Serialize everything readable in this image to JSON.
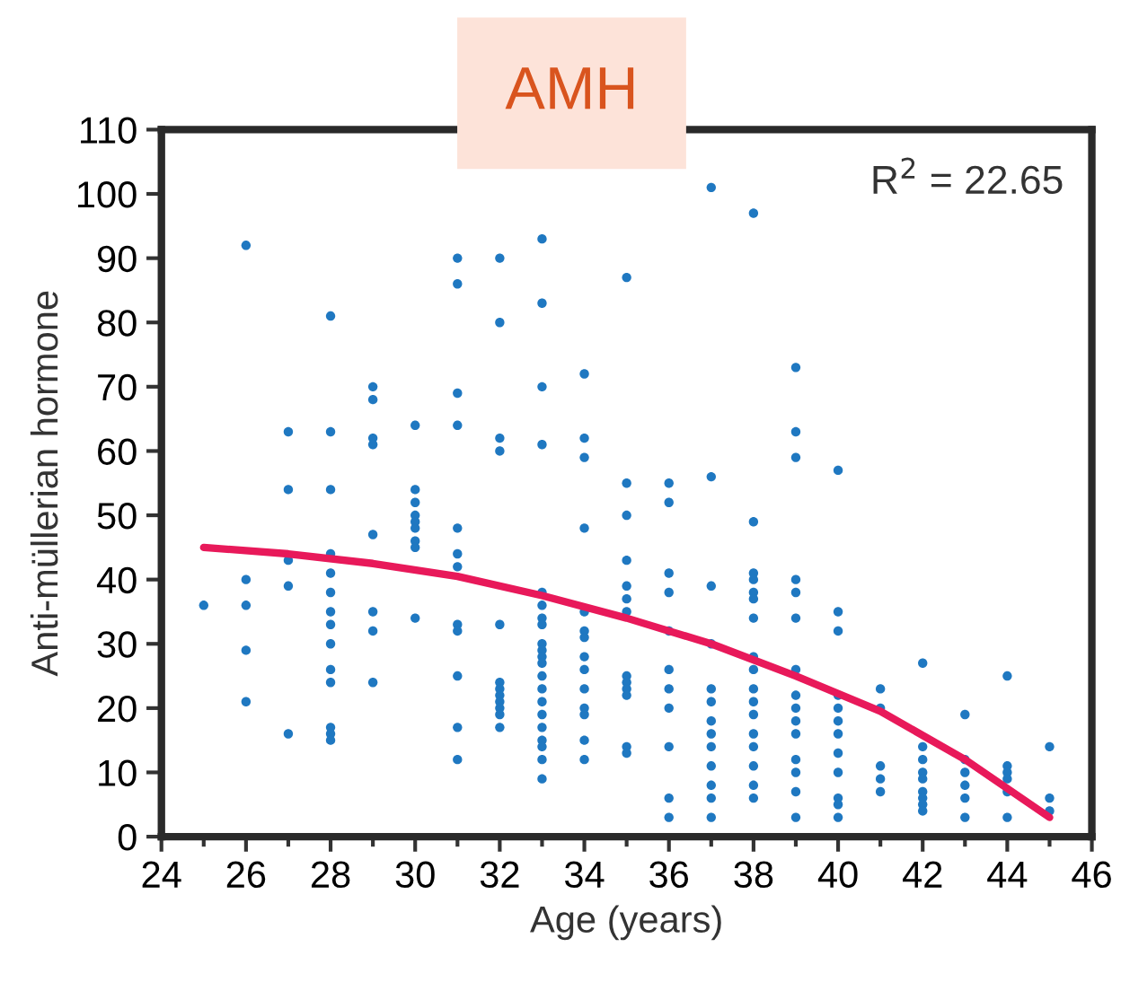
{
  "chart_data": {
    "type": "scatter",
    "title": "AMH",
    "xlabel": "Age (years)",
    "ylabel": "Anti-müllerian hormone",
    "annotations": [
      "R$^{2}$ = 22.65"
    ],
    "xlim": [
      24,
      46
    ],
    "xticks": [
      24,
      {
        "value": 25,
        "label": null
      },
      26,
      {
        "value": 27,
        "label": null
      },
      28,
      {
        "value": 29,
        "label": null
      },
      30,
      {
        "value": 31,
        "label": null
      },
      32,
      {
        "value": 33,
        "label": null
      },
      34,
      {
        "value": 35,
        "label": null
      },
      36,
      {
        "value": 37,
        "label": null
      },
      38,
      {
        "value": 39,
        "label": null
      },
      40,
      {
        "value": 41,
        "label": null
      },
      42,
      {
        "value": 43,
        "label": null
      },
      44,
      {
        "value": 45,
        "label": null
      },
      46
    ],
    "ylim": [
      0,
      110
    ],
    "yticks": [
      0,
      10,
      20,
      30,
      40,
      50,
      60,
      70,
      80,
      90,
      100,
      110
    ],
    "grid": false,
    "legend": false,
    "series": [
      {
        "marker": "circle",
        "color": "#1f78c1",
        "x": [
          25,
          26,
          26,
          26,
          26,
          26,
          27,
          27,
          27,
          27,
          27,
          28,
          28,
          28,
          28,
          28,
          28,
          28,
          28,
          28,
          28,
          28,
          28,
          28,
          28,
          29,
          29,
          29,
          29,
          29,
          29,
          29,
          29,
          30,
          30,
          30,
          30,
          30,
          30,
          30,
          30,
          30,
          31,
          31,
          31,
          31,
          31,
          31,
          31,
          31,
          31,
          31,
          31,
          31,
          32,
          32,
          32,
          32,
          32,
          32,
          32,
          32,
          32,
          32,
          32,
          32,
          33,
          33,
          33,
          33,
          33,
          33,
          33,
          33,
          33,
          33,
          33,
          33,
          33,
          33,
          33,
          33,
          33,
          33,
          33,
          33,
          33,
          34,
          34,
          34,
          34,
          34,
          34,
          34,
          34,
          34,
          34,
          34,
          34,
          34,
          34,
          35,
          35,
          35,
          35,
          35,
          35,
          35,
          35,
          35,
          35,
          35,
          35,
          35,
          36,
          36,
          36,
          36,
          36,
          36,
          36,
          36,
          36,
          36,
          36,
          37,
          37,
          37,
          37,
          37,
          37,
          37,
          37,
          37,
          37,
          37,
          37,
          37,
          38,
          38,
          38,
          38,
          38,
          38,
          38,
          38,
          38,
          38,
          38,
          38,
          38,
          38,
          38,
          38,
          38,
          39,
          39,
          39,
          39,
          39,
          39,
          39,
          39,
          39,
          39,
          39,
          39,
          39,
          39,
          39,
          40,
          40,
          40,
          40,
          40,
          40,
          40,
          40,
          40,
          40,
          40,
          40,
          41,
          41,
          41,
          41,
          41,
          42,
          42,
          42,
          42,
          42,
          42,
          42,
          42,
          42,
          43,
          43,
          43,
          43,
          43,
          43,
          44,
          44,
          44,
          44,
          44,
          44,
          45,
          45,
          45
        ],
        "values": [
          36,
          92,
          40,
          36,
          29,
          21,
          63,
          54,
          43,
          39,
          16,
          81,
          63,
          54,
          44,
          41,
          38,
          35,
          33,
          30,
          26,
          24,
          17,
          16,
          15,
          70,
          68,
          62,
          61,
          47,
          35,
          32,
          24,
          64,
          54,
          52,
          50,
          49,
          48,
          46,
          45,
          34,
          90,
          86,
          69,
          64,
          48,
          44,
          42,
          33,
          32,
          25,
          17,
          12,
          90,
          80,
          62,
          60,
          33,
          24,
          23,
          22,
          21,
          20,
          19,
          17,
          93,
          83,
          70,
          61,
          38,
          36,
          34,
          33,
          30,
          29,
          28,
          27,
          25,
          23,
          21,
          19,
          17,
          15,
          14,
          12,
          9,
          72,
          62,
          59,
          48,
          35,
          32,
          31,
          28,
          26,
          23,
          20,
          19,
          15,
          12,
          87,
          55,
          50,
          43,
          39,
          37,
          35,
          25,
          24,
          23,
          22,
          14,
          13,
          55,
          52,
          41,
          38,
          32,
          26,
          23,
          20,
          14,
          6,
          3,
          101,
          56,
          39,
          30,
          23,
          21,
          18,
          16,
          14,
          11,
          8,
          6,
          3,
          97,
          49,
          41,
          40,
          38,
          37,
          34,
          28,
          26,
          23,
          21,
          19,
          16,
          14,
          11,
          8,
          6,
          73,
          63,
          59,
          40,
          38,
          34,
          26,
          22,
          20,
          18,
          16,
          12,
          10,
          7,
          3,
          57,
          35,
          32,
          22,
          20,
          18,
          16,
          13,
          10,
          6,
          5,
          3,
          23,
          20,
          11,
          9,
          7,
          27,
          14,
          12,
          10,
          9,
          7,
          6,
          5,
          4,
          19,
          12,
          10,
          8,
          6,
          3,
          25,
          11,
          10,
          9,
          7,
          3,
          14,
          6,
          4
        ]
      },
      {
        "type": "line",
        "marker": "none",
        "color": "#e8195a",
        "x": [
          25,
          27,
          29,
          31,
          33,
          35,
          37,
          39,
          41,
          43,
          45
        ],
        "values": [
          45,
          44,
          42.5,
          40.5,
          37.5,
          34,
          30,
          25,
          19.5,
          12,
          3
        ]
      }
    ]
  }
}
